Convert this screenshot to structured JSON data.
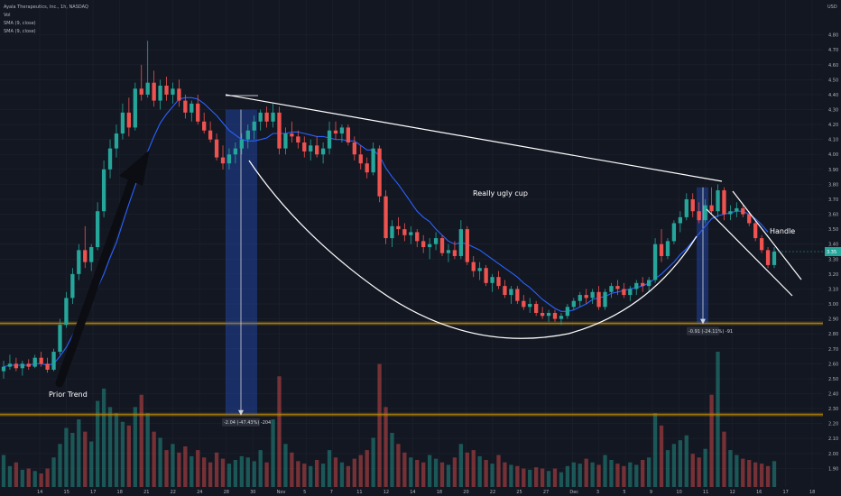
{
  "header": {
    "symbol_line": "Ayala Therapeutics, Inc., 1h, NASDAQ",
    "indicator_1": "Vol",
    "indicator_2": "SMA (9, close)",
    "indicator_3": "SMA (9, close)"
  },
  "currency": "USD",
  "colors": {
    "up": "#26a69a",
    "down": "#ef5350",
    "sma": "#2962ff",
    "level": "#b8860b",
    "measure": "#2962ff"
  },
  "annotations": {
    "prior_trend": "Prior Trend",
    "cup": "Really ugly cup",
    "handle": "Handle"
  },
  "measurements": {
    "first": "-2.04 (-47.43%) -204",
    "second": "-0.91 (-24.11%) -91"
  },
  "chart_data": {
    "type": "candlestick",
    "title": "Ayala Therapeutics, Inc., 1h, NASDAQ",
    "y_axis": {
      "unit": "USD",
      "ticks": [
        4.8,
        4.7,
        4.6,
        4.5,
        4.4,
        4.3,
        4.2,
        4.1,
        4.0,
        3.9,
        3.8,
        3.7,
        3.6,
        3.5,
        3.4,
        3.3,
        3.2,
        3.1,
        3.0,
        2.9,
        2.8,
        2.7,
        2.6,
        2.5,
        2.4,
        2.3,
        2.2,
        2.1,
        2.0,
        1.9
      ],
      "range": [
        1.86,
        4.84
      ]
    },
    "x_axis": {
      "ticks": [
        "14",
        "15",
        "17",
        "18",
        "21",
        "22",
        "24",
        "28",
        "30",
        "Nov",
        "5",
        "7",
        "11",
        "12",
        "14",
        "18",
        "20",
        "22",
        "25",
        "27",
        "Dec",
        "3",
        "5",
        "9",
        "10",
        "11",
        "12",
        "16",
        "17",
        "18"
      ]
    },
    "last_price": 3.35,
    "levels": [
      2.87,
      2.26
    ],
    "drops": [
      {
        "label": "-2.04 (-47.43%) -204",
        "from": 4.3,
        "to": 2.26
      },
      {
        "label": "-0.91 (-24.11%) -91",
        "from": 3.78,
        "to": 2.87
      }
    ],
    "series": [
      {
        "name": "Price",
        "ohlc": [
          [
            2.55,
            2.62,
            2.5,
            2.58
          ],
          [
            2.58,
            2.66,
            2.56,
            2.6
          ],
          [
            2.6,
            2.64,
            2.55,
            2.57
          ],
          [
            2.57,
            2.62,
            2.52,
            2.6
          ],
          [
            2.6,
            2.63,
            2.56,
            2.58
          ],
          [
            2.58,
            2.66,
            2.57,
            2.64
          ],
          [
            2.64,
            2.68,
            2.58,
            2.6
          ],
          [
            2.6,
            2.64,
            2.54,
            2.56
          ],
          [
            2.56,
            2.7,
            2.55,
            2.68
          ],
          [
            2.68,
            2.9,
            2.66,
            2.86
          ],
          [
            2.86,
            3.08,
            2.84,
            3.04
          ],
          [
            3.04,
            3.24,
            3.0,
            3.2
          ],
          [
            3.2,
            3.4,
            3.16,
            3.36
          ],
          [
            3.36,
            3.52,
            3.24,
            3.28
          ],
          [
            3.28,
            3.4,
            3.22,
            3.38
          ],
          [
            3.38,
            3.68,
            3.36,
            3.62
          ],
          [
            3.62,
            3.96,
            3.58,
            3.9
          ],
          [
            3.9,
            4.1,
            3.84,
            4.04
          ],
          [
            4.04,
            4.2,
            3.98,
            4.14
          ],
          [
            4.14,
            4.34,
            4.1,
            4.28
          ],
          [
            4.28,
            4.38,
            4.12,
            4.18
          ],
          [
            4.18,
            4.48,
            4.16,
            4.44
          ],
          [
            4.44,
            4.6,
            4.36,
            4.4
          ],
          [
            4.4,
            4.76,
            4.38,
            4.48
          ],
          [
            4.48,
            4.56,
            4.32,
            4.36
          ],
          [
            4.36,
            4.5,
            4.3,
            4.46
          ],
          [
            4.46,
            4.52,
            4.36,
            4.4
          ],
          [
            4.4,
            4.48,
            4.34,
            4.44
          ],
          [
            4.44,
            4.5,
            4.32,
            4.36
          ],
          [
            4.36,
            4.4,
            4.24,
            4.28
          ],
          [
            4.28,
            4.36,
            4.22,
            4.34
          ],
          [
            4.34,
            4.4,
            4.2,
            4.22
          ],
          [
            4.22,
            4.28,
            4.14,
            4.16
          ],
          [
            4.16,
            4.22,
            4.08,
            4.1
          ],
          [
            4.1,
            4.14,
            3.96,
            3.98
          ],
          [
            3.98,
            4.06,
            3.9,
            3.94
          ],
          [
            3.94,
            4.04,
            3.9,
            4.0
          ],
          [
            4.0,
            4.08,
            3.94,
            4.04
          ],
          [
            4.04,
            4.14,
            4.0,
            4.1
          ],
          [
            4.1,
            4.2,
            4.04,
            4.16
          ],
          [
            4.16,
            4.26,
            4.1,
            4.22
          ],
          [
            4.22,
            4.3,
            4.16,
            4.28
          ],
          [
            4.28,
            4.32,
            4.18,
            4.22
          ],
          [
            4.22,
            4.34,
            4.18,
            4.28
          ],
          [
            4.28,
            4.32,
            4.0,
            4.04
          ],
          [
            4.04,
            4.18,
            4.0,
            4.14
          ],
          [
            4.14,
            4.22,
            4.08,
            4.12
          ],
          [
            4.12,
            4.16,
            4.04,
            4.08
          ],
          [
            4.08,
            4.12,
            3.98,
            4.02
          ],
          [
            4.02,
            4.1,
            3.96,
            4.06
          ],
          [
            4.06,
            4.12,
            3.98,
            4.0
          ],
          [
            4.0,
            4.08,
            3.94,
            4.04
          ],
          [
            4.04,
            4.22,
            4.0,
            4.16
          ],
          [
            4.16,
            4.22,
            4.1,
            4.14
          ],
          [
            4.14,
            4.2,
            4.08,
            4.18
          ],
          [
            4.18,
            4.2,
            4.06,
            4.08
          ],
          [
            4.08,
            4.12,
            3.96,
            4.0
          ],
          [
            4.0,
            4.06,
            3.9,
            3.94
          ],
          [
            3.94,
            3.98,
            3.84,
            3.88
          ],
          [
            3.88,
            4.08,
            3.86,
            4.04
          ],
          [
            4.04,
            4.06,
            3.68,
            3.72
          ],
          [
            3.72,
            3.76,
            3.4,
            3.44
          ],
          [
            3.44,
            3.56,
            3.38,
            3.52
          ],
          [
            3.52,
            3.58,
            3.46,
            3.5
          ],
          [
            3.5,
            3.54,
            3.42,
            3.46
          ],
          [
            3.46,
            3.52,
            3.4,
            3.48
          ],
          [
            3.48,
            3.5,
            3.38,
            3.42
          ],
          [
            3.42,
            3.46,
            3.34,
            3.38
          ],
          [
            3.38,
            3.44,
            3.3,
            3.4
          ],
          [
            3.4,
            3.48,
            3.36,
            3.44
          ],
          [
            3.44,
            3.46,
            3.32,
            3.34
          ],
          [
            3.34,
            3.4,
            3.28,
            3.36
          ],
          [
            3.36,
            3.42,
            3.3,
            3.32
          ],
          [
            3.32,
            3.56,
            3.3,
            3.5
          ],
          [
            3.5,
            3.52,
            3.26,
            3.28
          ],
          [
            3.28,
            3.32,
            3.18,
            3.22
          ],
          [
            3.22,
            3.28,
            3.16,
            3.24
          ],
          [
            3.24,
            3.26,
            3.12,
            3.14
          ],
          [
            3.14,
            3.2,
            3.08,
            3.18
          ],
          [
            3.18,
            3.22,
            3.1,
            3.12
          ],
          [
            3.12,
            3.16,
            3.04,
            3.06
          ],
          [
            3.06,
            3.12,
            3.0,
            3.1
          ],
          [
            3.1,
            3.12,
            3.0,
            3.02
          ],
          [
            3.02,
            3.06,
            2.96,
            2.98
          ],
          [
            2.98,
            3.04,
            2.94,
            3.0
          ],
          [
            3.0,
            3.02,
            2.92,
            2.94
          ],
          [
            2.94,
            2.98,
            2.9,
            2.92
          ],
          [
            2.92,
            2.96,
            2.88,
            2.94
          ],
          [
            2.94,
            2.96,
            2.88,
            2.9
          ],
          [
            2.9,
            2.94,
            2.86,
            2.92
          ],
          [
            2.92,
            3.0,
            2.9,
            2.98
          ],
          [
            2.98,
            3.04,
            2.96,
            3.02
          ],
          [
            3.02,
            3.08,
            2.98,
            3.06
          ],
          [
            3.06,
            3.1,
            3.0,
            3.04
          ],
          [
            3.04,
            3.1,
            3.0,
            3.08
          ],
          [
            3.08,
            3.12,
            2.96,
            2.98
          ],
          [
            2.98,
            3.1,
            2.96,
            3.08
          ],
          [
            3.08,
            3.14,
            3.04,
            3.12
          ],
          [
            3.12,
            3.16,
            3.06,
            3.1
          ],
          [
            3.1,
            3.14,
            3.04,
            3.06
          ],
          [
            3.06,
            3.12,
            3.02,
            3.1
          ],
          [
            3.1,
            3.16,
            3.06,
            3.14
          ],
          [
            3.14,
            3.18,
            3.08,
            3.12
          ],
          [
            3.12,
            3.18,
            3.08,
            3.16
          ],
          [
            3.16,
            3.44,
            3.14,
            3.4
          ],
          [
            3.4,
            3.5,
            3.28,
            3.32
          ],
          [
            3.32,
            3.44,
            3.3,
            3.42
          ],
          [
            3.42,
            3.56,
            3.4,
            3.54
          ],
          [
            3.54,
            3.62,
            3.48,
            3.58
          ],
          [
            3.58,
            3.74,
            3.56,
            3.7
          ],
          [
            3.7,
            3.74,
            3.58,
            3.62
          ],
          [
            3.62,
            3.68,
            3.54,
            3.56
          ],
          [
            3.56,
            3.7,
            3.54,
            3.66
          ],
          [
            3.66,
            3.78,
            3.6,
            3.62
          ],
          [
            3.62,
            3.8,
            3.58,
            3.76
          ],
          [
            3.76,
            3.78,
            3.56,
            3.6
          ],
          [
            3.6,
            3.66,
            3.56,
            3.62
          ],
          [
            3.62,
            3.68,
            3.58,
            3.64
          ],
          [
            3.64,
            3.66,
            3.58,
            3.6
          ],
          [
            3.6,
            3.62,
            3.52,
            3.54
          ],
          [
            3.54,
            3.56,
            3.42,
            3.44
          ],
          [
            3.44,
            3.46,
            3.34,
            3.36
          ],
          [
            3.36,
            3.38,
            3.24,
            3.26
          ],
          [
            3.26,
            3.38,
            3.24,
            3.35
          ]
        ]
      },
      {
        "name": "SMA (9, close)",
        "values": [
          2.58,
          2.59,
          2.59,
          2.59,
          2.59,
          2.6,
          2.6,
          2.59,
          2.6,
          2.65,
          2.71,
          2.79,
          2.87,
          2.94,
          3.02,
          3.11,
          3.2,
          3.31,
          3.41,
          3.54,
          3.67,
          3.79,
          3.91,
          4.02,
          4.12,
          4.21,
          4.27,
          4.32,
          4.37,
          4.38,
          4.38,
          4.37,
          4.34,
          4.3,
          4.26,
          4.21,
          4.16,
          4.13,
          4.1,
          4.09,
          4.09,
          4.1,
          4.11,
          4.14,
          4.14,
          4.14,
          4.15,
          4.15,
          4.14,
          4.13,
          4.12,
          4.12,
          4.11,
          4.1,
          4.1,
          4.09,
          4.09,
          4.06,
          4.03,
          4.03,
          3.99,
          3.91,
          3.85,
          3.8,
          3.74,
          3.68,
          3.62,
          3.58,
          3.55,
          3.5,
          3.46,
          3.42,
          3.4,
          3.41,
          3.4,
          3.38,
          3.36,
          3.33,
          3.3,
          3.27,
          3.24,
          3.21,
          3.18,
          3.14,
          3.11,
          3.07,
          3.03,
          3.0,
          2.97,
          2.95,
          2.95,
          2.96,
          2.98,
          3.0,
          3.03,
          3.04,
          3.05,
          3.07,
          3.08,
          3.09,
          3.1,
          3.11,
          3.12,
          3.14,
          3.17,
          3.2,
          3.24,
          3.28,
          3.33,
          3.37,
          3.42,
          3.47,
          3.52,
          3.57,
          3.59,
          3.6,
          3.61,
          3.62,
          3.62,
          3.6,
          3.57,
          3.53,
          3.48
        ]
      }
    ],
    "volume": [
      52,
      34,
      40,
      28,
      30,
      26,
      22,
      30,
      48,
      70,
      96,
      88,
      110,
      90,
      74,
      140,
      160,
      130,
      120,
      106,
      100,
      130,
      150,
      120,
      90,
      80,
      60,
      70,
      56,
      66,
      50,
      60,
      48,
      40,
      56,
      46,
      38,
      44,
      50,
      48,
      42,
      60,
      40,
      110,
      180,
      70,
      56,
      42,
      38,
      34,
      44,
      38,
      60,
      48,
      40,
      34,
      46,
      52,
      60,
      80,
      200,
      130,
      88,
      70,
      56,
      48,
      44,
      40,
      52,
      46,
      40,
      36,
      48,
      70,
      56,
      60,
      50,
      44,
      38,
      52,
      40,
      36,
      34,
      30,
      28,
      32,
      30,
      26,
      30,
      24,
      34,
      40,
      38,
      46,
      40,
      36,
      52,
      44,
      38,
      34,
      40,
      36,
      44,
      48,
      120,
      100,
      60,
      70,
      76,
      84,
      54,
      48,
      62,
      150,
      220,
      90,
      60,
      52,
      46,
      44,
      40,
      38,
      34,
      42
    ],
    "volume_up": [
      true,
      true,
      false,
      true,
      false,
      true,
      false,
      false,
      true,
      true,
      true,
      true,
      true,
      false,
      true,
      true,
      true,
      true,
      true,
      true,
      false,
      true,
      false,
      true,
      false,
      true,
      false,
      true,
      false,
      false,
      true,
      false,
      false,
      false,
      false,
      false,
      true,
      true,
      true,
      true,
      true,
      true,
      false,
      true,
      false,
      true,
      false,
      false,
      false,
      true,
      false,
      true,
      true,
      false,
      true,
      false,
      false,
      false,
      false,
      true,
      false,
      false,
      true,
      false,
      false,
      true,
      false,
      false,
      true,
      true,
      false,
      true,
      false,
      true,
      false,
      false,
      true,
      false,
      true,
      false,
      false,
      true,
      false,
      false,
      true,
      false,
      false,
      true,
      false,
      true,
      true,
      true,
      true,
      false,
      true,
      false,
      true,
      true,
      false,
      false,
      true,
      true,
      false,
      true,
      true,
      false,
      true,
      true,
      true,
      true,
      false,
      false,
      true,
      false,
      true,
      false,
      true,
      true,
      false,
      false,
      false,
      false,
      false,
      true
    ]
  }
}
